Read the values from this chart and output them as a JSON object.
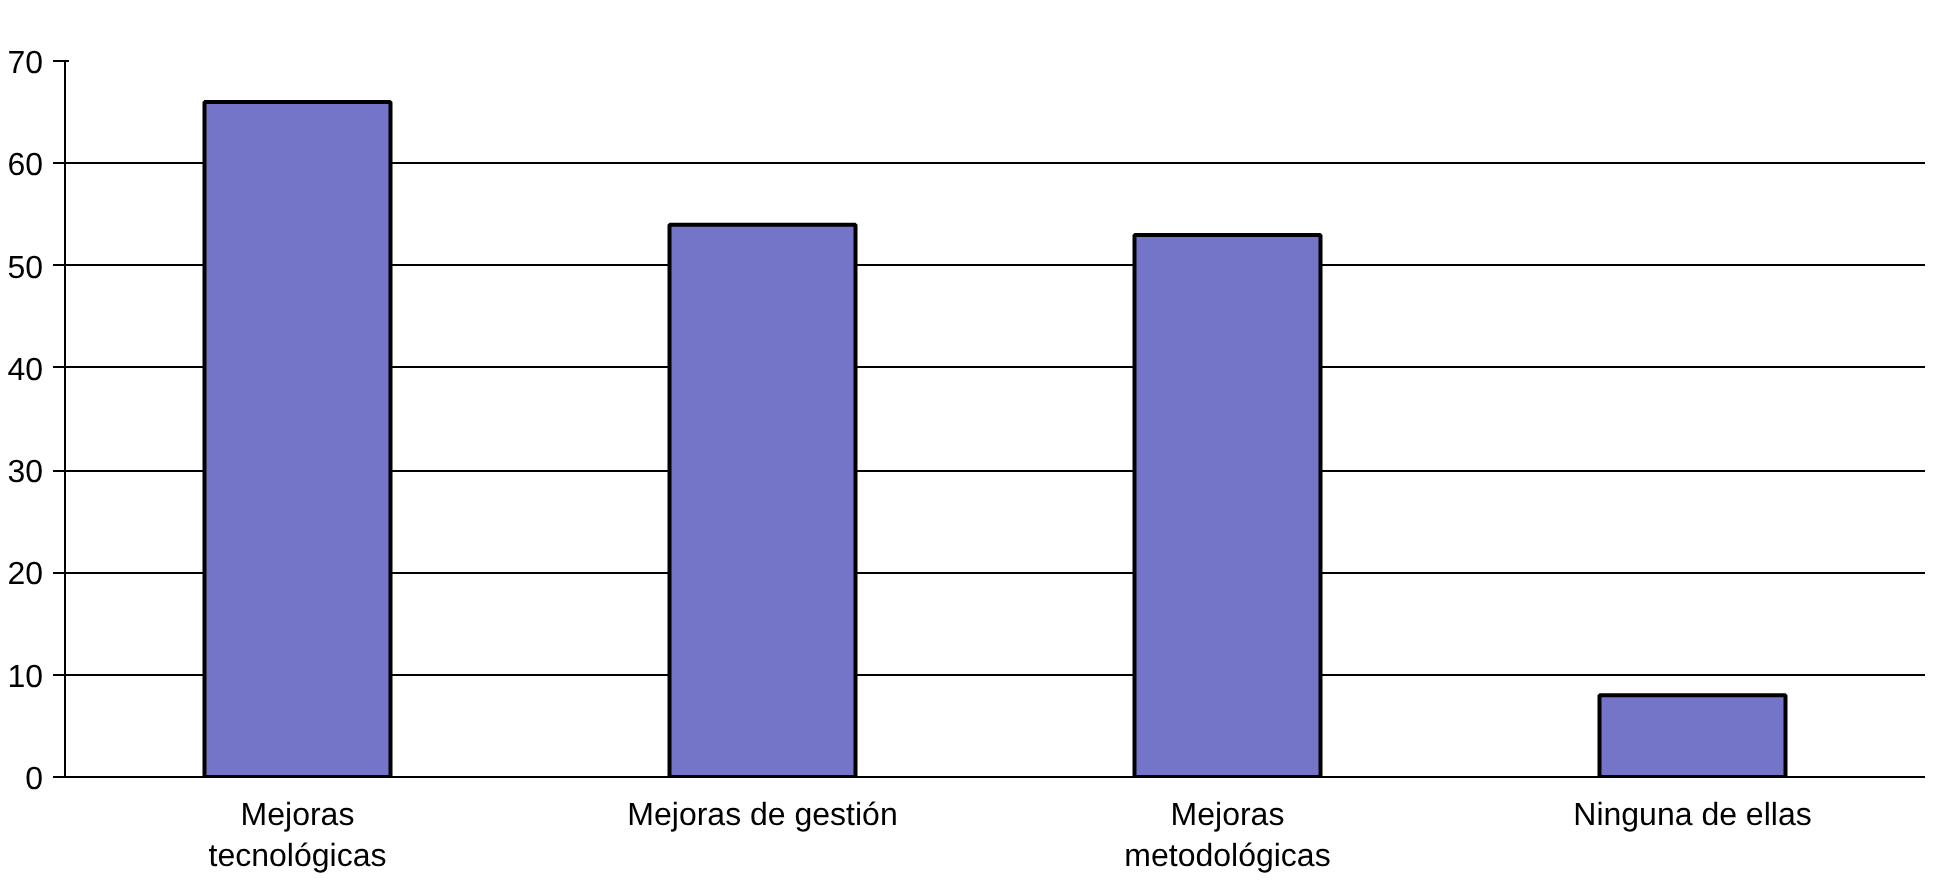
{
  "chart_data": {
    "type": "bar",
    "categories": [
      "Mejoras\ntecnológicas",
      "Mejoras de gestión",
      "Mejoras\nmetodológicas",
      "Ninguna de ellas"
    ],
    "values": [
      66,
      54,
      53,
      8
    ],
    "color": "#7474c8",
    "ylim": [
      0,
      70
    ],
    "yticks": [
      0,
      10,
      20,
      30,
      40,
      50,
      60,
      70
    ],
    "grid": "y"
  }
}
